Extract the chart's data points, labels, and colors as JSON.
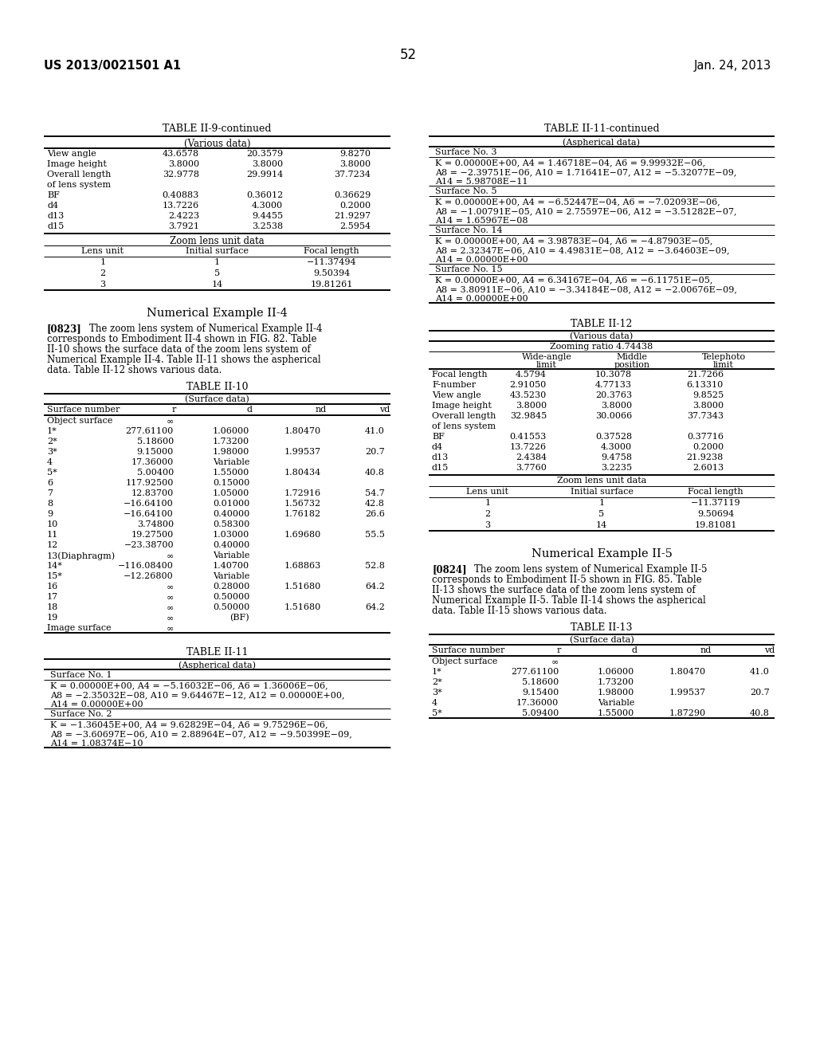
{
  "page_number": "52",
  "patent_number": "US 2013/0021501 A1",
  "patent_date": "Jan. 24, 2013",
  "background_color": "#ffffff",
  "table_II9_continued": {
    "title": "TABLE II-9-continued",
    "subtitle": "(Various data)",
    "various_data": {
      "rows": [
        [
          "View angle",
          "43.6578",
          "20.3579",
          "9.8270"
        ],
        [
          "Image height",
          "3.8000",
          "3.8000",
          "3.8000"
        ],
        [
          "Overall length",
          "32.9778",
          "29.9914",
          "37.7234"
        ],
        [
          "of lens system",
          "",
          "",
          ""
        ],
        [
          "BF",
          "0.40883",
          "0.36012",
          "0.36629"
        ],
        [
          "d4",
          "13.7226",
          "4.3000",
          "0.2000"
        ],
        [
          "d13",
          "2.4223",
          "9.4455",
          "21.9297"
        ],
        [
          "d15",
          "3.7921",
          "3.2538",
          "2.5954"
        ]
      ]
    },
    "zoom_lens_unit_data": {
      "subtitle": "Zoom lens unit data",
      "headers": [
        "Lens unit",
        "Initial surface",
        "Focal length"
      ],
      "rows": [
        [
          "1",
          "1",
          "−11.37494"
        ],
        [
          "2",
          "5",
          "9.50394"
        ],
        [
          "3",
          "14",
          "19.81261"
        ]
      ]
    }
  },
  "numerical_example_II4": {
    "heading": "Numerical Example II-4",
    "paragraph_tag": "[0823]",
    "paragraph_lines": [
      "The zoom lens system of Numerical Example II-4",
      "corresponds to Embodiment II-4 shown in FIG. 82. Table",
      "II-10 shows the surface data of the zoom lens system of",
      "Numerical Example II-4. Table II-11 shows the aspherical",
      "data. Table II-12 shows various data."
    ]
  },
  "table_II10": {
    "title": "TABLE II-10",
    "subtitle": "(Surface data)",
    "headers": [
      "Surface number",
      "r",
      "d",
      "nd",
      "vd"
    ],
    "rows": [
      [
        "Object surface",
        "∞",
        "",
        "",
        ""
      ],
      [
        "1*",
        "277.61100",
        "1.06000",
        "1.80470",
        "41.0"
      ],
      [
        "2*",
        "5.18600",
        "1.73200",
        "",
        ""
      ],
      [
        "3*",
        "9.15000",
        "1.98000",
        "1.99537",
        "20.7"
      ],
      [
        "4",
        "17.36000",
        "Variable",
        "",
        ""
      ],
      [
        "5*",
        "5.00400",
        "1.55000",
        "1.80434",
        "40.8"
      ],
      [
        "6",
        "117.92500",
        "0.15000",
        "",
        ""
      ],
      [
        "7",
        "12.83700",
        "1.05000",
        "1.72916",
        "54.7"
      ],
      [
        "8",
        "−16.64100",
        "0.01000",
        "1.56732",
        "42.8"
      ],
      [
        "9",
        "−16.64100",
        "0.40000",
        "1.76182",
        "26.6"
      ],
      [
        "10",
        "3.74800",
        "0.58300",
        "",
        ""
      ],
      [
        "11",
        "19.27500",
        "1.03000",
        "1.69680",
        "55.5"
      ],
      [
        "12",
        "−23.38700",
        "0.40000",
        "",
        ""
      ],
      [
        "13(Diaphragm)",
        "∞",
        "Variable",
        "",
        ""
      ],
      [
        "14*",
        "−116.08400",
        "1.40700",
        "1.68863",
        "52.8"
      ],
      [
        "15*",
        "−12.26800",
        "Variable",
        "",
        ""
      ],
      [
        "16",
        "∞",
        "0.28000",
        "1.51680",
        "64.2"
      ],
      [
        "17",
        "∞",
        "0.50000",
        "",
        ""
      ],
      [
        "18",
        "∞",
        "0.50000",
        "1.51680",
        "64.2"
      ],
      [
        "19",
        "∞",
        "(BF)",
        "",
        ""
      ],
      [
        "Image surface",
        "∞",
        "",
        "",
        ""
      ]
    ]
  },
  "table_II11": {
    "title": "TABLE II-11",
    "subtitle": "(Aspherical data)",
    "surfaces": [
      {
        "label": "Surface No. 1",
        "lines": [
          "K = 0.00000E+00, A4 = −5.16032E−06, A6 = 1.36006E−06,",
          "A8 = −2.35032E−08, A10 = 9.64467E−12, A12 = 0.00000E+00,",
          "A14 = 0.00000E+00"
        ]
      },
      {
        "label": "Surface No. 2",
        "lines": [
          "K = −1.36045E+00, A4 = 9.62829E−04, A6 = 9.75296E−06,",
          "A8 = −3.60697E−06, A10 = 2.88964E−07, A12 = −9.50399E−09,",
          "A14 = 1.08374E−10"
        ]
      }
    ]
  },
  "table_II11_continued": {
    "title": "TABLE II-11-continued",
    "subtitle": "(Aspherical data)",
    "surfaces": [
      {
        "label": "Surface No. 3",
        "lines": [
          "K = 0.00000E+00, A4 = 1.46718E−04, A6 = 9.99932E−06,",
          "A8 = −2.39751E−06, A10 = 1.71641E−07, A12 = −5.32077E−09,",
          "A14 = 5.98708E−11"
        ]
      },
      {
        "label": "Surface No. 5",
        "lines": [
          "K = 0.00000E+00, A4 = −6.52447E−04, A6 = −7.02093E−06,",
          "A8 = −1.00791E−05, A10 = 2.75597E−06, A12 = −3.51282E−07,",
          "A14 = 1.65967E−08"
        ]
      },
      {
        "label": "Surface No. 14",
        "lines": [
          "K = 0.00000E+00, A4 = 3.98783E−04, A6 = −4.87903E−05,",
          "A8 = 2.32347E−06, A10 = 4.49831E−08, A12 = −3.64603E−09,",
          "A14 = 0.00000E+00"
        ]
      },
      {
        "label": "Surface No. 15",
        "lines": [
          "K = 0.00000E+00, A4 = 6.34167E−04, A6 = −6.11751E−05,",
          "A8 = 3.80911E−06, A10 = −3.34184E−08, A12 = −2.00676E−09,",
          "A14 = 0.00000E+00"
        ]
      }
    ]
  },
  "table_II12": {
    "title": "TABLE II-12",
    "subtitle": "(Various data)",
    "zooming_ratio": "Zooming ratio 4.74438",
    "col_headers": [
      "Wide-angle\nlimit",
      "Middle\nposition",
      "Telephoto\nlimit"
    ],
    "rows": [
      [
        "Focal length",
        "4.5794",
        "10.3078",
        "21.7266"
      ],
      [
        "F-number",
        "2.91050",
        "4.77133",
        "6.13310"
      ],
      [
        "View angle",
        "43.5230",
        "20.3763",
        "9.8525"
      ],
      [
        "Image height",
        "3.8000",
        "3.8000",
        "3.8000"
      ],
      [
        "Overall length",
        "32.9845",
        "30.0066",
        "37.7343"
      ],
      [
        "of lens system",
        "",
        "",
        ""
      ],
      [
        "BF",
        "0.41553",
        "0.37528",
        "0.37716"
      ],
      [
        "d4",
        "13.7226",
        "4.3000",
        "0.2000"
      ],
      [
        "d13",
        "2.4384",
        "9.4758",
        "21.9238"
      ],
      [
        "d15",
        "3.7760",
        "3.2235",
        "2.6013"
      ]
    ],
    "zoom_lens_unit_data": {
      "subtitle": "Zoom lens unit data",
      "headers": [
        "Lens unit",
        "Initial surface",
        "Focal length"
      ],
      "rows": [
        [
          "1",
          "1",
          "−11.37119"
        ],
        [
          "2",
          "5",
          "9.50694"
        ],
        [
          "3",
          "14",
          "19.81081"
        ]
      ]
    }
  },
  "numerical_example_II5": {
    "heading": "Numerical Example II-5",
    "paragraph_tag": "[0824]",
    "paragraph_lines": [
      "The zoom lens system of Numerical Example II-5",
      "corresponds to Embodiment II-5 shown in FIG. 85. Table",
      "II-13 shows the surface data of the zoom lens system of",
      "Numerical Example II-5. Table II-14 shows the aspherical",
      "data. Table II-15 shows various data."
    ]
  },
  "table_II13": {
    "title": "TABLE II-13",
    "subtitle": "(Surface data)",
    "headers": [
      "Surface number",
      "r",
      "d",
      "nd",
      "vd"
    ],
    "rows": [
      [
        "Object surface",
        "∞",
        "",
        "",
        ""
      ],
      [
        "1*",
        "277.61100",
        "1.06000",
        "1.80470",
        "41.0"
      ],
      [
        "2*",
        "5.18600",
        "1.73200",
        "",
        ""
      ],
      [
        "3*",
        "9.15400",
        "1.98000",
        "1.99537",
        "20.7"
      ],
      [
        "4",
        "17.36000",
        "Variable",
        "",
        ""
      ],
      [
        "5*",
        "5.09400",
        "1.55000",
        "1.87290",
        "40.8"
      ]
    ]
  }
}
